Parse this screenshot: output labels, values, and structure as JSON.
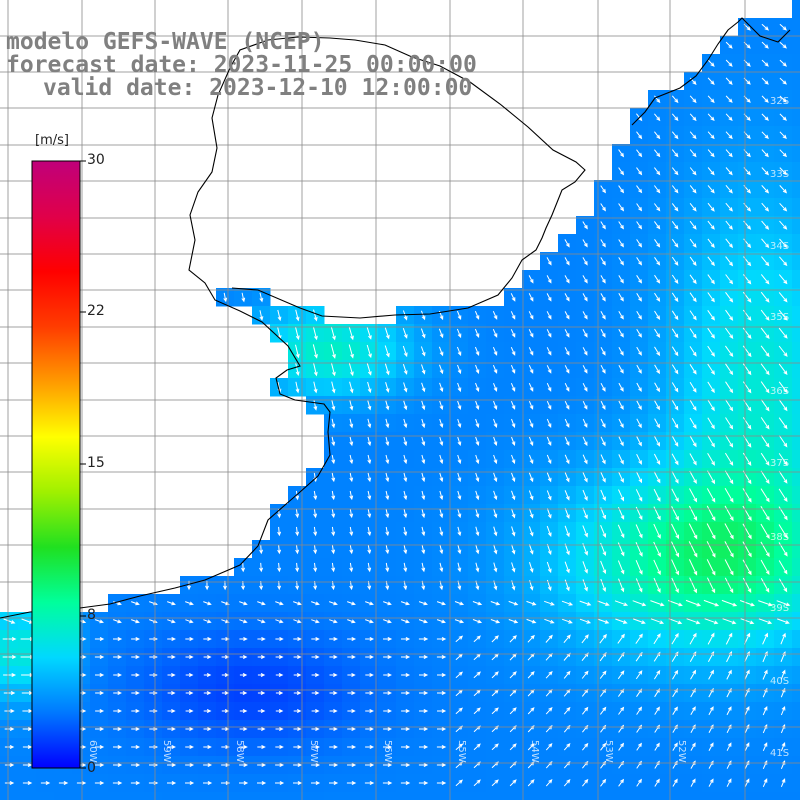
{
  "title": {
    "line1": "modelo GEFS-WAVE (NCEP)",
    "line2": "forecast date: 2023-11-25 00:00:00",
    "line3": "valid date: 2023-12-10 12:00:00"
  },
  "colorbar": {
    "unit": "[m/s]",
    "ticks": [
      "30",
      "22",
      "15",
      "8",
      "0"
    ],
    "colors": [
      "#0000ff",
      "#0078ff",
      "#00d8ff",
      "#00ff9c",
      "#20e020",
      "#a0f000",
      "#ffff00",
      "#ff9a00",
      "#ff3c00",
      "#ff0000",
      "#e0004a",
      "#c0007a"
    ]
  },
  "grid_labels": {
    "latitudes": [
      "32S",
      "33S",
      "34S",
      "35S",
      "36S",
      "37S",
      "38S",
      "39S",
      "40S",
      "41S"
    ],
    "longitudes": [
      "60W",
      "59W",
      "58W",
      "57W",
      "56W",
      "55W",
      "54W",
      "53W",
      "52W"
    ]
  }
}
